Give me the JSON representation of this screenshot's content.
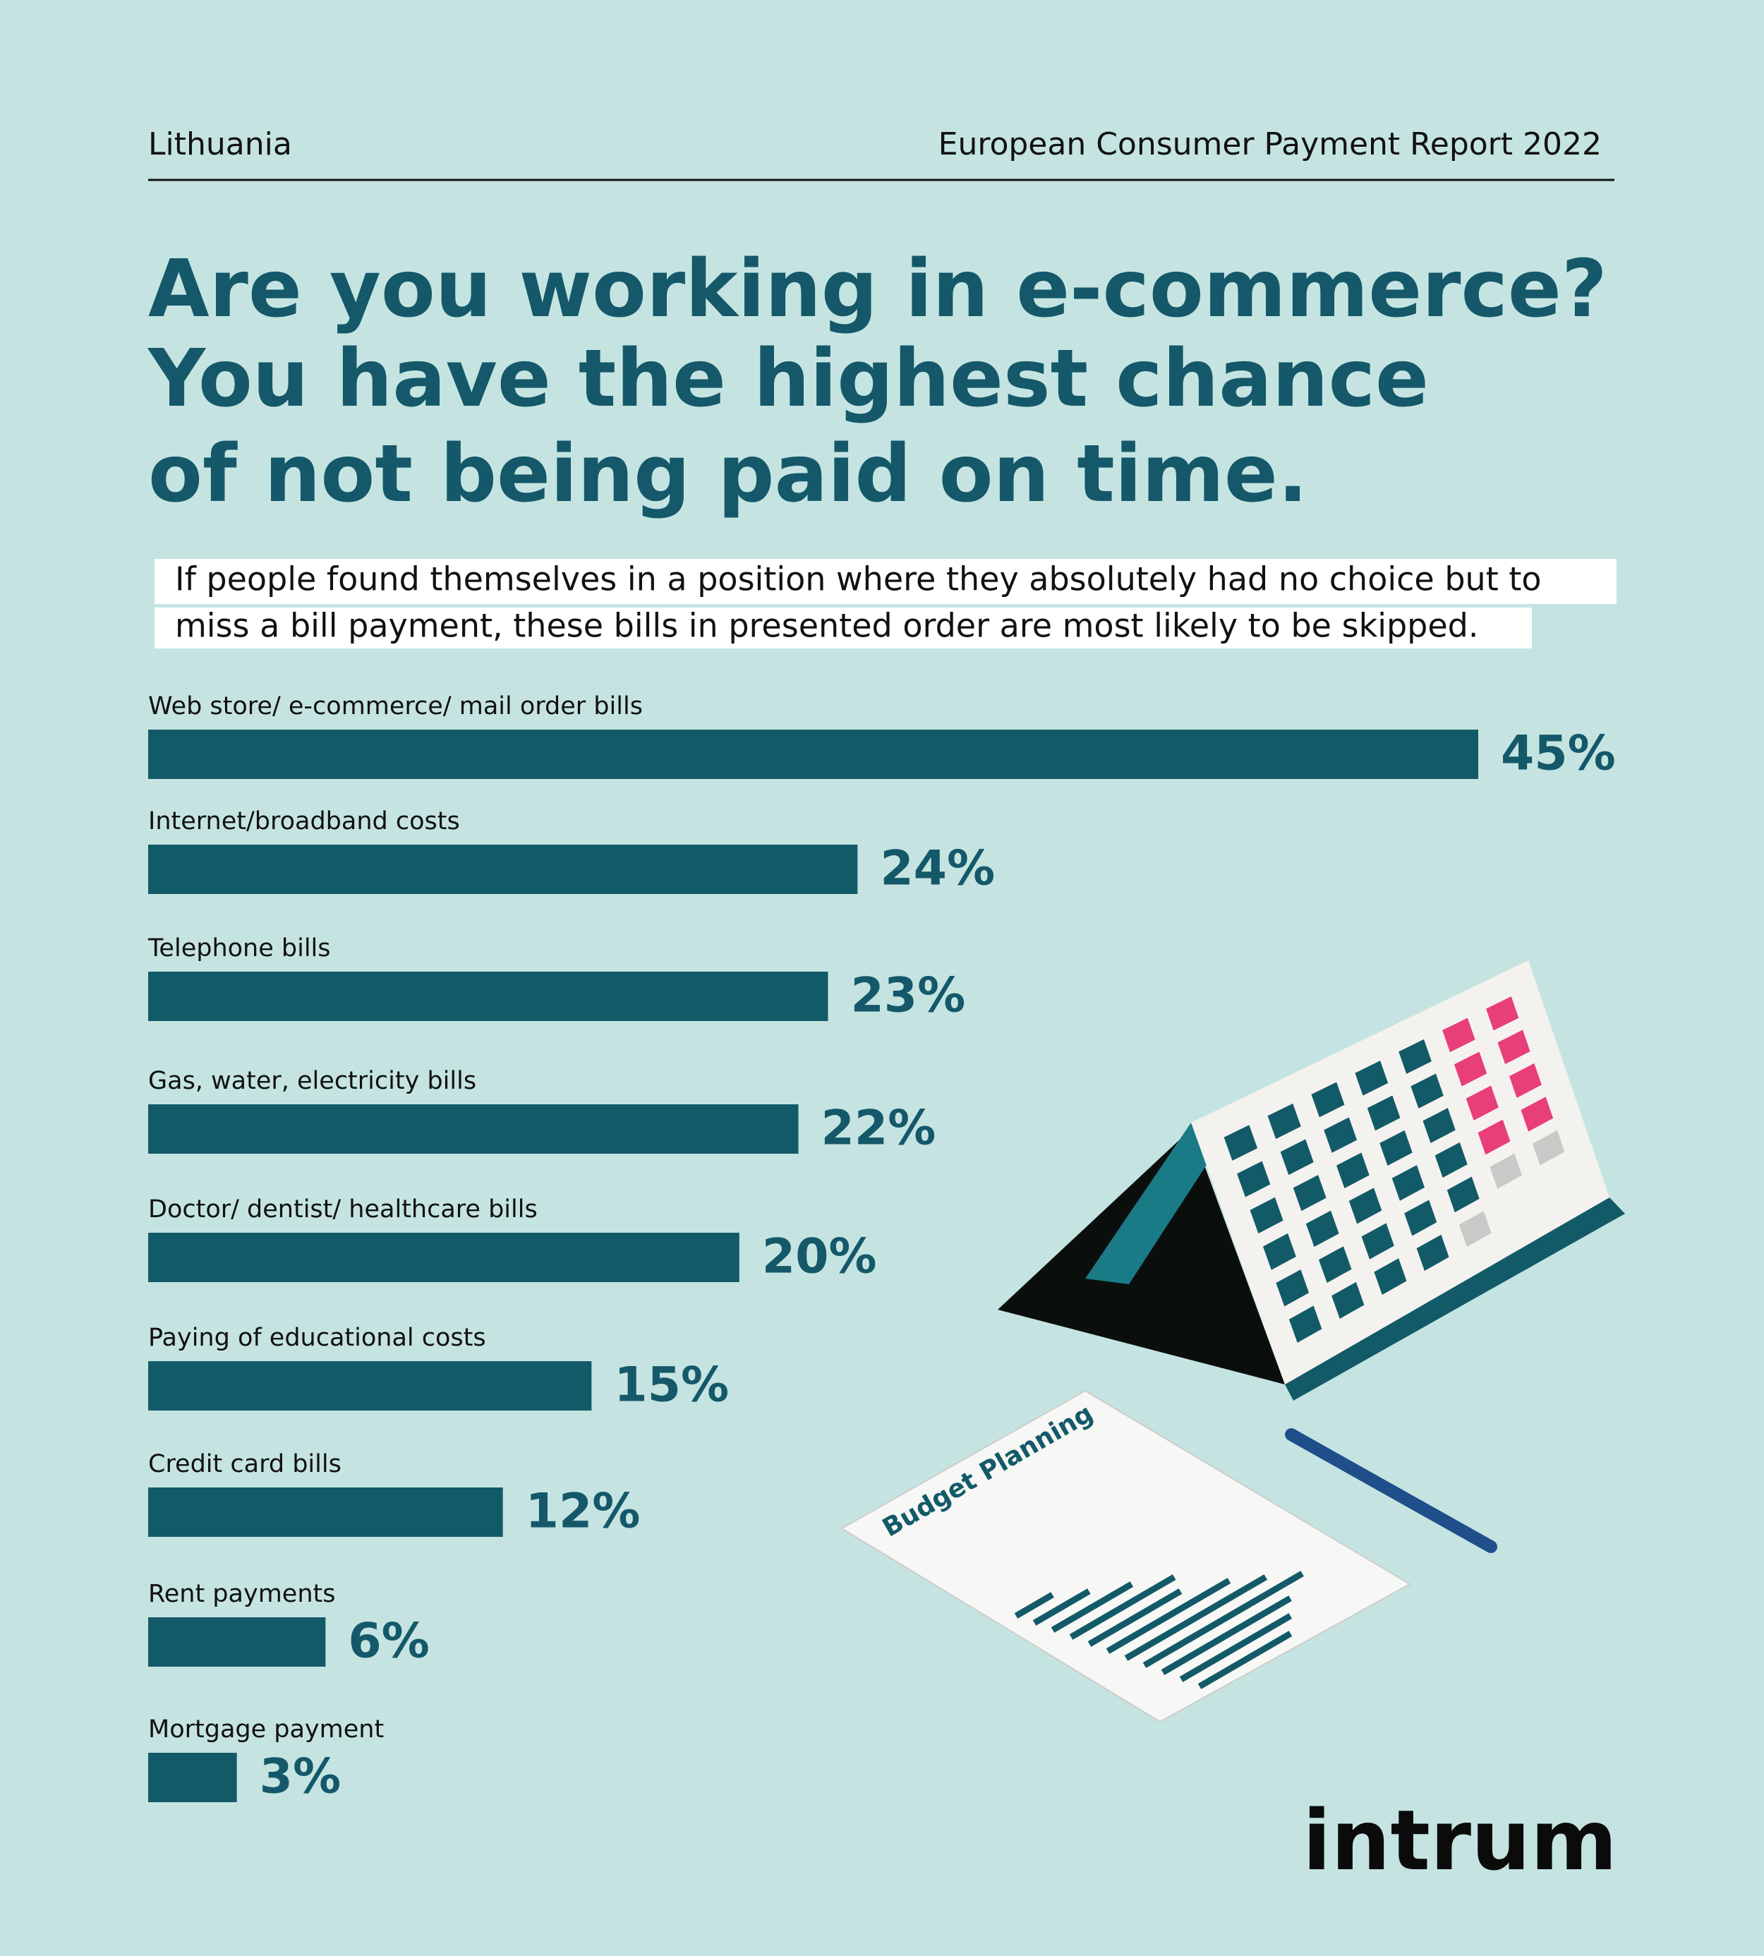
{
  "header": {
    "country": "Lithuania",
    "report": "European Consumer Payment Report 2022"
  },
  "chart_data": {
    "type": "hbar",
    "title": [
      "Are you working in e-commerce?",
      "You have the highest chance",
      "of not being paid on time."
    ],
    "subtitle": [
      "If people found themselves in a position where they absolutely had no choice but to",
      "miss a bill payment, these bills in presented order are most likely to be skipped."
    ],
    "categories": [
      "Web store/ e-commerce/ mail order bills",
      "Internet/broadband costs",
      "Telephone bills",
      "Gas, water, electricity bills",
      "Doctor/ dentist/ healthcare bills",
      "Paying of educational costs",
      "Credit card bills",
      "Rent payments",
      "Mortgage payment"
    ],
    "values": [
      45,
      24,
      23,
      22,
      20,
      15,
      12,
      6,
      3
    ],
    "value_labels": [
      "45%",
      "24%",
      "23%",
      "22%",
      "20%",
      "15%",
      "12%",
      "6%",
      "3%"
    ],
    "color": "#135a69"
  },
  "illustration_text": "Budget Planning",
  "logo": "intrum"
}
